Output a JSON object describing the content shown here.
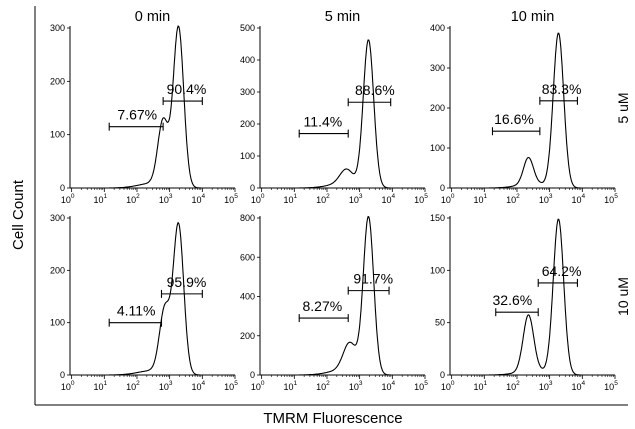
{
  "chart_data": {
    "type": "histogram-grid",
    "xlabel": "TMRM Fluorescence",
    "ylabel": "Cell Count",
    "x_scale": "log",
    "x_tick_labels": [
      {
        "base": "10",
        "exp": "0"
      },
      {
        "base": "10",
        "exp": "1"
      },
      {
        "base": "10",
        "exp": "2"
      },
      {
        "base": "10",
        "exp": "3"
      },
      {
        "base": "10",
        "exp": "4"
      },
      {
        "base": "10",
        "exp": "5"
      }
    ],
    "column_titles": [
      "0 min",
      "5 min",
      "10 min"
    ],
    "row_labels": [
      "5 uM",
      "10 uM"
    ],
    "panels": [
      {
        "row": 0,
        "col": 0,
        "ymax": 300,
        "yticks": [
          0,
          100,
          200,
          300
        ],
        "peak": 300,
        "shoulders": [
          {
            "x": 2.8,
            "h": 0.4,
            "w": 0.16
          }
        ],
        "gates": [
          {
            "label": "7.67%",
            "x0": 1.15,
            "x1": 2.8,
            "y": 115
          },
          {
            "label": "90.4%",
            "x0": 2.8,
            "x1": 4.0,
            "y": 163
          }
        ]
      },
      {
        "row": 0,
        "col": 1,
        "ymax": 500,
        "yticks": [
          0,
          100,
          200,
          300,
          400,
          500
        ],
        "peak": 460,
        "shoulders": [
          {
            "x": 2.6,
            "h": 0.1,
            "w": 0.2
          }
        ],
        "gates": [
          {
            "label": "11.4%",
            "x0": 1.15,
            "x1": 2.65,
            "y": 170
          },
          {
            "label": "88.6%",
            "x0": 2.65,
            "x1": 3.95,
            "y": 268
          }
        ]
      },
      {
        "row": 0,
        "col": 2,
        "ymax": 400,
        "yticks": [
          0,
          100,
          200,
          300,
          400
        ],
        "peak": 385,
        "shoulders": [
          {
            "x": 2.35,
            "h": 0.17,
            "w": 0.15
          }
        ],
        "gates": [
          {
            "label": "16.6%",
            "x0": 1.25,
            "x1": 2.7,
            "y": 142
          },
          {
            "label": "83.3%",
            "x0": 2.7,
            "x1": 3.85,
            "y": 218
          }
        ]
      },
      {
        "row": 1,
        "col": 0,
        "ymax": 300,
        "yticks": [
          0,
          100,
          200,
          300
        ],
        "peak": 285,
        "shoulders": [
          {
            "x": 2.85,
            "h": 0.42,
            "w": 0.16
          }
        ],
        "gates": [
          {
            "label": "4.11%",
            "x0": 1.15,
            "x1": 2.75,
            "y": 100
          },
          {
            "label": "95.9%",
            "x0": 2.75,
            "x1": 4.0,
            "y": 155
          }
        ]
      },
      {
        "row": 1,
        "col": 1,
        "ymax": 800,
        "yticks": [
          0,
          200,
          400,
          600,
          800
        ],
        "peak": 800,
        "shoulders": [
          {
            "x": 2.7,
            "h": 0.18,
            "w": 0.2
          }
        ],
        "gates": [
          {
            "label": "8.27%",
            "x0": 1.15,
            "x1": 2.65,
            "y": 290
          },
          {
            "label": "91.7%",
            "x0": 2.65,
            "x1": 3.9,
            "y": 430
          }
        ]
      },
      {
        "row": 1,
        "col": 2,
        "ymax": 150,
        "yticks": [
          0,
          50,
          100,
          150
        ],
        "peak": 148,
        "shoulders": [
          {
            "x": 2.35,
            "h": 0.36,
            "w": 0.16
          }
        ],
        "gates": [
          {
            "label": "32.6%",
            "x0": 1.35,
            "x1": 2.65,
            "y": 60
          },
          {
            "label": "64.2%",
            "x0": 2.65,
            "x1": 3.85,
            "y": 88
          }
        ]
      }
    ]
  }
}
